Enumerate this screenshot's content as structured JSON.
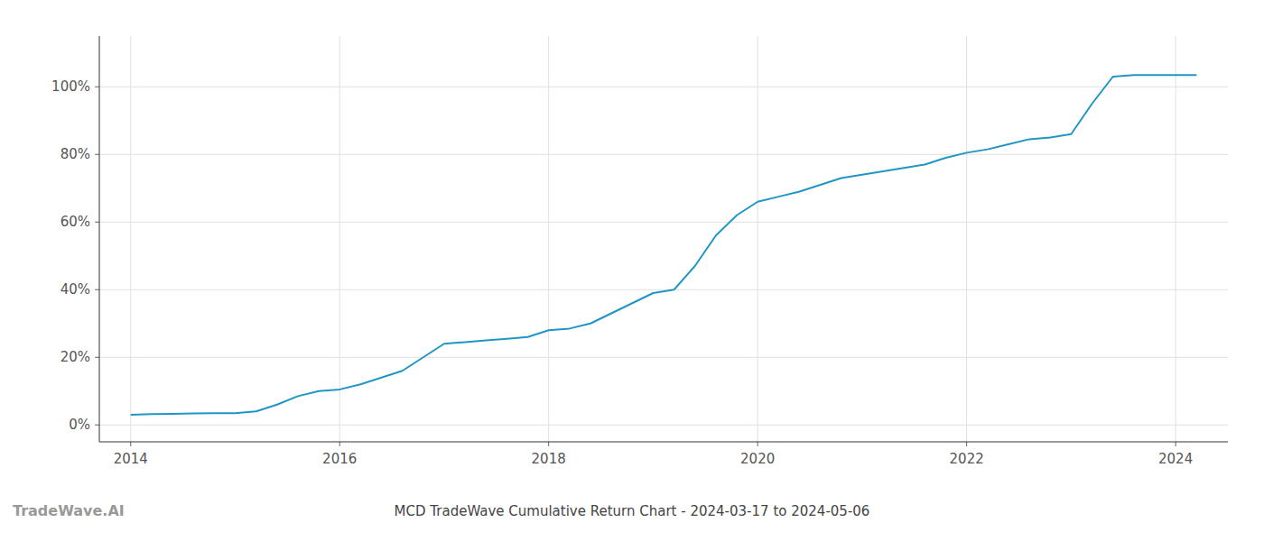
{
  "chart_data": {
    "type": "line",
    "title": "MCD TradeWave Cumulative Return Chart - 2024-03-17 to 2024-05-06",
    "annotations": [
      "TradeWave.AI"
    ],
    "color": "#2196c4",
    "x": [
      2014.0,
      2014.2,
      2014.4,
      2014.6,
      2014.8,
      2015.0,
      2015.2,
      2015.4,
      2015.6,
      2015.8,
      2016.0,
      2016.2,
      2016.4,
      2016.6,
      2016.8,
      2017.0,
      2017.2,
      2017.4,
      2017.6,
      2017.8,
      2018.0,
      2018.2,
      2018.4,
      2018.6,
      2018.8,
      2019.0,
      2019.2,
      2019.4,
      2019.6,
      2019.8,
      2020.0,
      2020.2,
      2020.4,
      2020.6,
      2020.8,
      2021.0,
      2021.2,
      2021.4,
      2021.6,
      2021.8,
      2022.0,
      2022.2,
      2022.4,
      2022.6,
      2022.8,
      2023.0,
      2023.2,
      2023.4,
      2023.6,
      2023.8,
      2024.0,
      2024.2
    ],
    "values": [
      3.0,
      3.2,
      3.3,
      3.4,
      3.5,
      3.5,
      4.0,
      6.0,
      8.5,
      10.0,
      10.5,
      12.0,
      14.0,
      16.0,
      20.0,
      24.0,
      24.5,
      25.0,
      25.5,
      26.0,
      28.0,
      28.5,
      30.0,
      33.0,
      36.0,
      39.0,
      40.0,
      47.0,
      56.0,
      62.0,
      66.0,
      67.5,
      69.0,
      71.0,
      73.0,
      74.0,
      75.0,
      76.0,
      77.0,
      79.0,
      80.5,
      81.5,
      83.0,
      84.5,
      85.0,
      86.0,
      95.0,
      103.0,
      103.5,
      103.5,
      103.5,
      103.5
    ],
    "xlim": [
      2013.7,
      2024.5
    ],
    "ylim": [
      -5,
      115
    ],
    "xticks": [
      2014,
      2016,
      2018,
      2020,
      2022,
      2024
    ],
    "yticks": [
      {
        "value": 0,
        "label": "0%"
      },
      {
        "value": 20,
        "label": "20%"
      },
      {
        "value": 40,
        "label": "40%"
      },
      {
        "value": 60,
        "label": "60%"
      },
      {
        "value": 80,
        "label": "80%"
      },
      {
        "value": 100,
        "label": "100%"
      }
    ],
    "grid": true
  }
}
